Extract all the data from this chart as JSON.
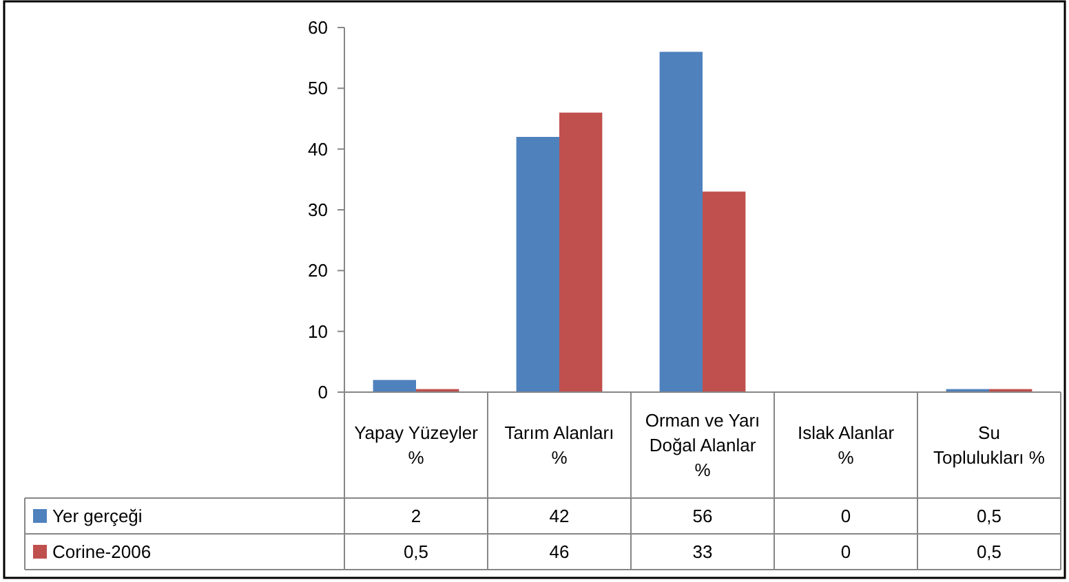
{
  "chart_data": {
    "type": "bar",
    "categories": [
      "Yapay Yüzeyler %",
      "Tarım Alanları %",
      "Orman ve Yarı Doğal Alanlar %",
      "Islak Alanlar %",
      "Su Toplulukları %"
    ],
    "series": [
      {
        "name": "Yer gerçeği",
        "color": "#4f81bd",
        "values": [
          2,
          42,
          56,
          0,
          0.5
        ],
        "value_labels": [
          "2",
          "42",
          "56",
          "0",
          "0,5"
        ]
      },
      {
        "name": "Corine-2006",
        "color": "#c0504d",
        "values": [
          0.5,
          46,
          33,
          0,
          0.5
        ],
        "value_labels": [
          "0,5",
          "46",
          "33",
          "0",
          "0,5"
        ]
      }
    ],
    "ylim": [
      0,
      60
    ],
    "yticks": [
      0,
      10,
      20,
      30,
      40,
      50,
      60
    ],
    "grid": false,
    "legend": "bottom"
  }
}
